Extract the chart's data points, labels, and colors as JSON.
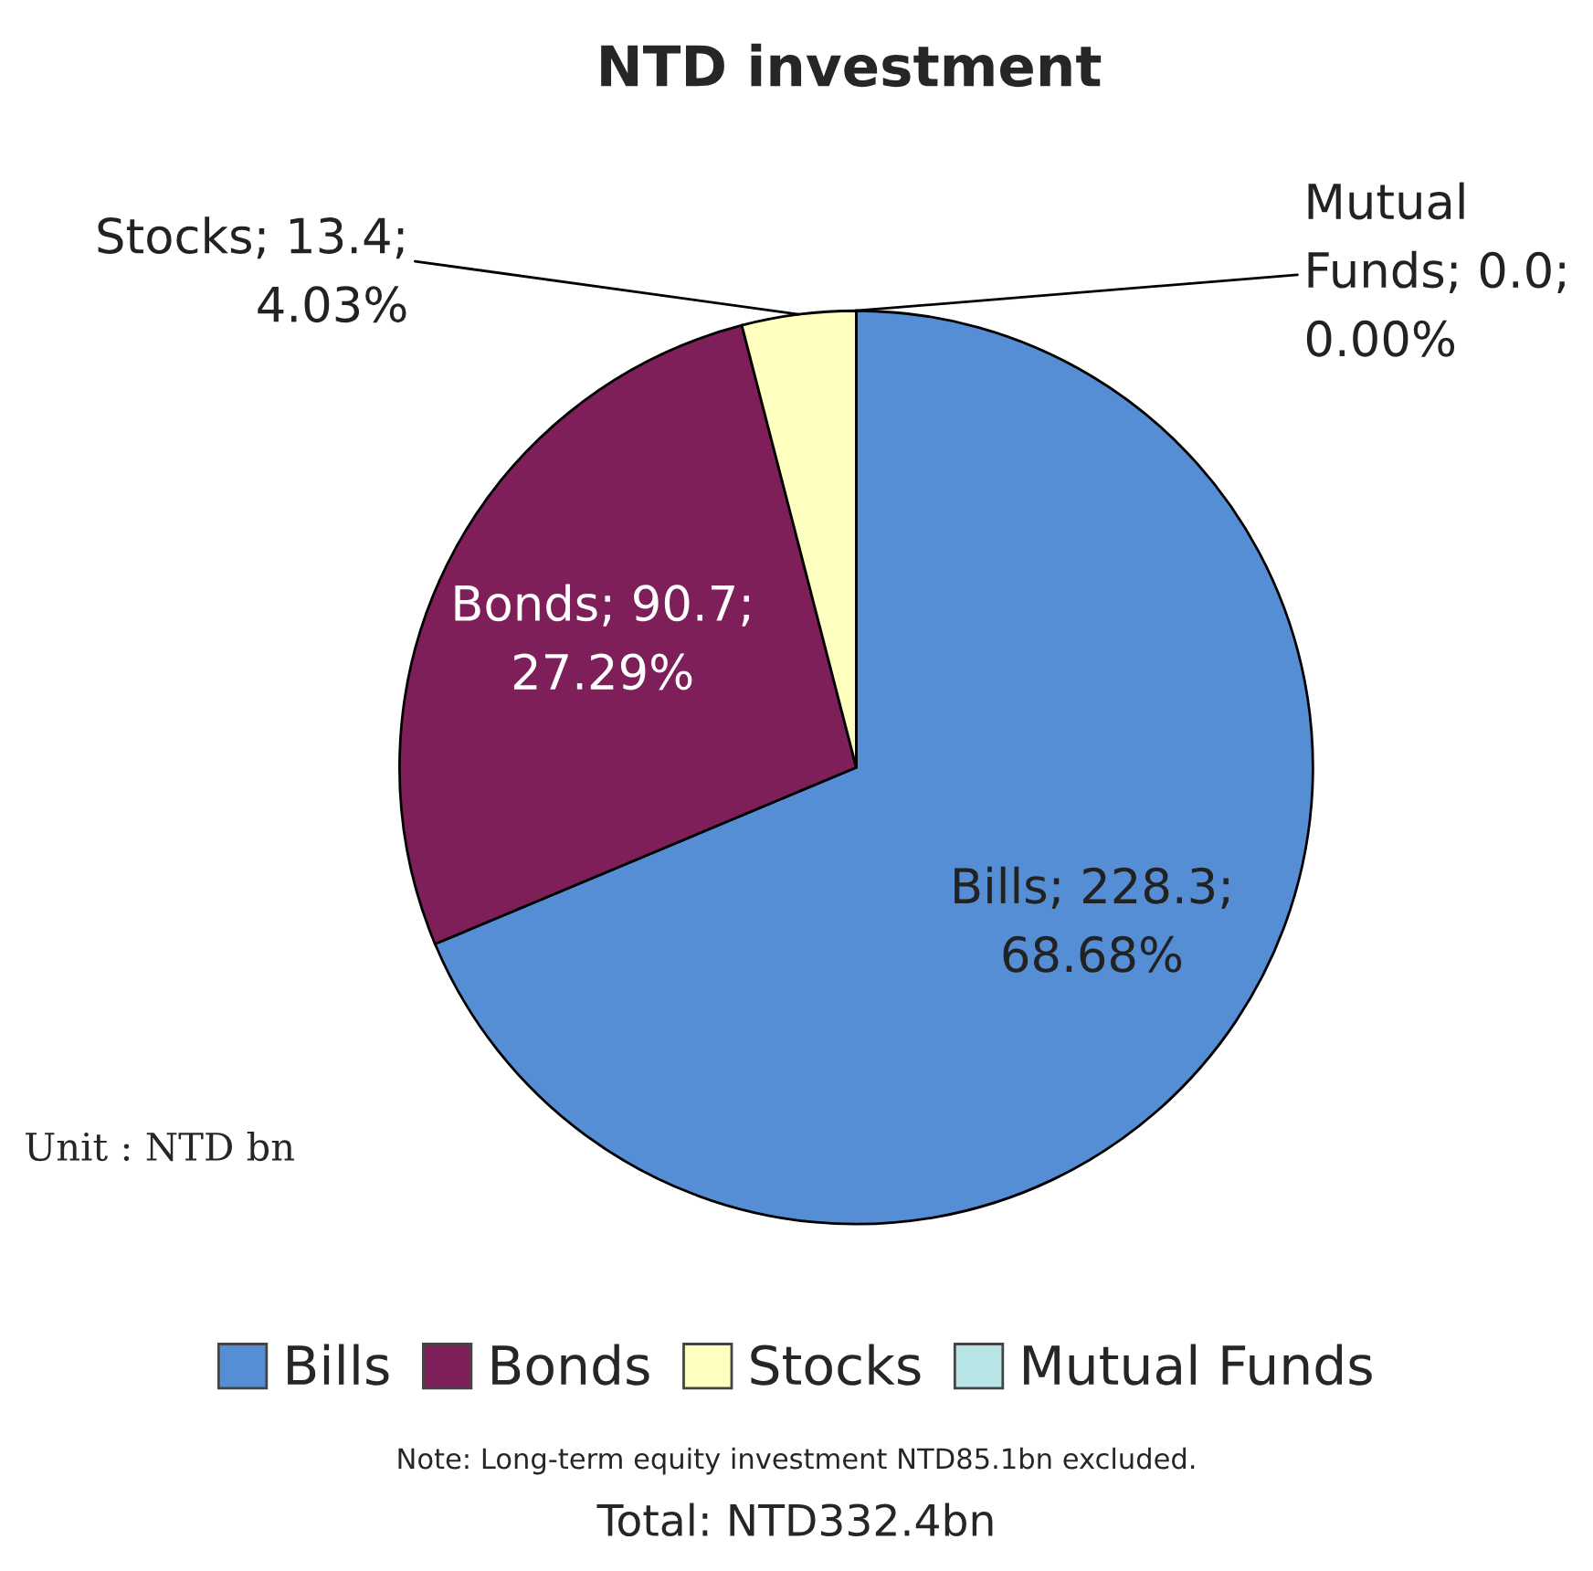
{
  "chart_data": {
    "type": "pie",
    "title": "NTD investment",
    "categories": [
      "Bills",
      "Bonds",
      "Stocks",
      "Mutual Funds"
    ],
    "values": [
      228.3,
      90.7,
      13.4,
      0.0
    ],
    "colors": [
      "#558ed5",
      "#7f1f5a",
      "#ffffc0",
      "#b7e4e4"
    ],
    "value_labels": [
      "Bills; 228.3;\n68.68%",
      "Bonds; 90.7;\n27.29%",
      "Stocks; 13.4;\n4.03%",
      "Mutual\nFunds; 0.0;\n0.00%"
    ],
    "legend": "bottom",
    "annotations": [
      "Unit : NTD bn",
      "Note: Long-term equity investment NTD85.1bn excluded.",
      "Total: NTD332.4bn"
    ]
  }
}
